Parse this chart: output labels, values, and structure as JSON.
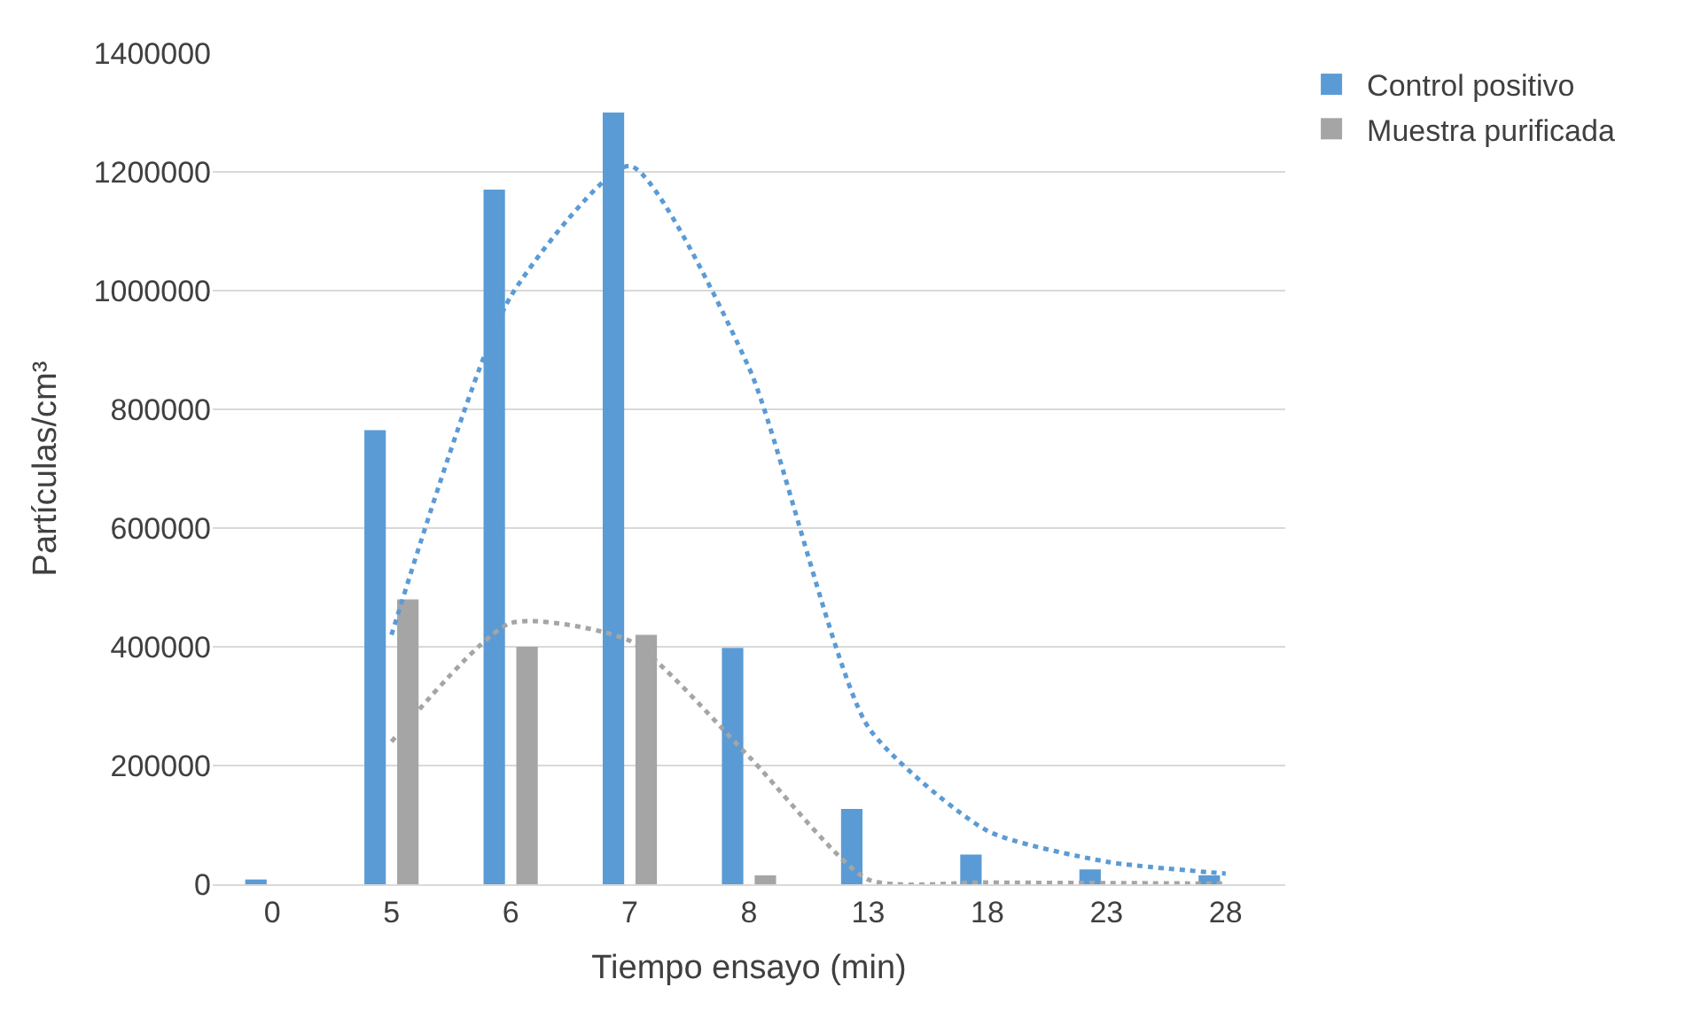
{
  "chart_data": {
    "type": "bar",
    "xlabel": "Tiempo ensayo (min)",
    "ylabel": "Partículas/cm³",
    "categories": [
      "0",
      "5",
      "6",
      "7",
      "8",
      "13",
      "18",
      "23",
      "28"
    ],
    "series": [
      {
        "name": "Control positivo",
        "color": "#5b9bd5",
        "values": [
          8000,
          765000,
          1170000,
          1300000,
          398000,
          127000,
          50000,
          25000,
          15000
        ]
      },
      {
        "name": "Muestra purificada",
        "color": "#a5a5a5",
        "values": [
          0,
          480000,
          400000,
          420000,
          15000,
          0,
          0,
          0,
          0
        ]
      },
      {
        "type": "line",
        "line_style": "dotted",
        "color": "#5b9bd5",
        "values": [
          null,
          420000,
          990000,
          1210000,
          870000,
          265000,
          90000,
          38000,
          18000
        ]
      },
      {
        "type": "line",
        "line_style": "dotted",
        "color": "#a5a5a5",
        "values": [
          null,
          240000,
          440000,
          410000,
          215000,
          8000,
          3000,
          2000,
          1000
        ]
      }
    ],
    "ylim": [
      0,
      1400000
    ],
    "yticks": [
      0,
      200000,
      400000,
      600000,
      800000,
      1000000,
      1200000,
      1400000
    ],
    "grid": "y",
    "legend": "top right",
    "marker": "none"
  }
}
